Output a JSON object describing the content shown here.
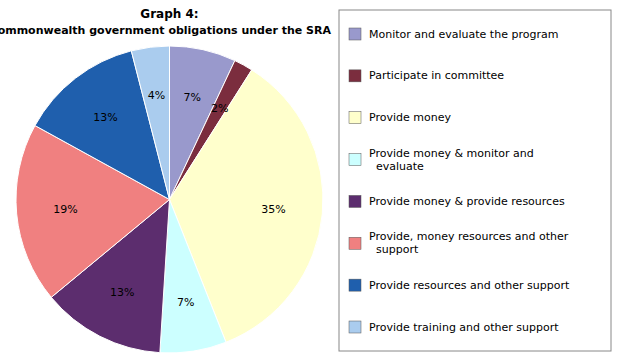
{
  "chart_data": {
    "type": "pie",
    "title": "Graph 4:",
    "subtitle": "Commonwealth government obligations under the SRA",
    "categories": [
      "Monitor and evaluate the program",
      "Participate in committee",
      "Provide money",
      "Provide money & monitor and\n  evaluate",
      "Provide money & provide resources",
      "Provide, money resources and other\n  support",
      "Provide resources and other support",
      "Provide training and other support"
    ],
    "values": [
      7,
      2,
      35,
      7,
      13,
      19,
      13,
      4
    ],
    "value_labels": [
      "7%",
      "2%",
      "35%",
      "7%",
      "13%",
      "19%",
      "13%",
      "4%"
    ],
    "colors": [
      "#9999CC",
      "#7B2D3E",
      "#FFFFCC",
      "#CCFFFF",
      "#5C2D6E",
      "#F08080",
      "#1F5FAD",
      "#AACCEE"
    ],
    "data_labels": true,
    "legend": "right"
  }
}
